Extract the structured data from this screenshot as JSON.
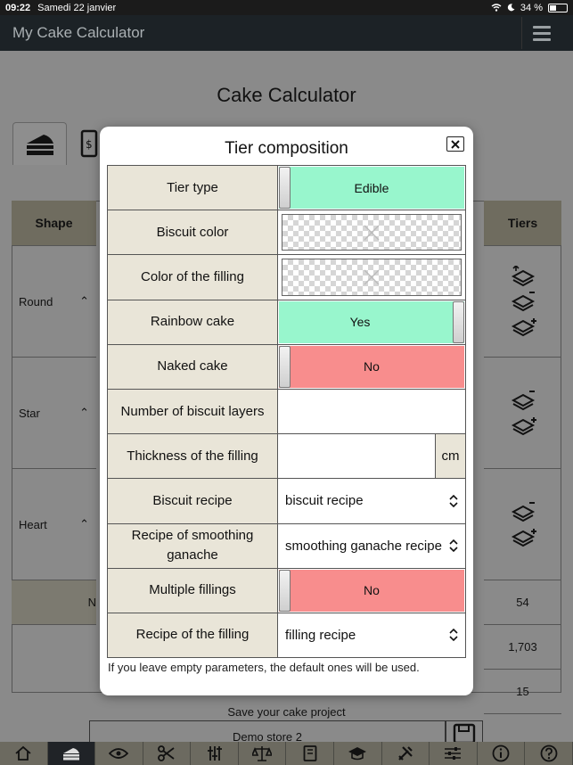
{
  "status": {
    "time": "09:22",
    "date": "Samedi 22 janvier",
    "battery": "34 %"
  },
  "app": {
    "title": "My Cake Calculator"
  },
  "page": {
    "title": "Cake Calculator",
    "shape_header": "Shape",
    "tiers_header": "Tiers",
    "shapes": [
      "Round",
      "Star",
      "Heart"
    ],
    "summary_values": [
      "54",
      "1,703",
      "15"
    ],
    "summary_label_partial": "N",
    "save_label": "Save your cake project",
    "store_value": "Demo store 2"
  },
  "modal": {
    "title": "Tier composition",
    "rows": {
      "tier_type": {
        "label": "Tier type",
        "value": "Edible"
      },
      "biscuit_color": {
        "label": "Biscuit color"
      },
      "filling_color": {
        "label": "Color of the filling"
      },
      "rainbow": {
        "label": "Rainbow cake",
        "value": "Yes"
      },
      "naked": {
        "label": "Naked cake",
        "value": "No"
      },
      "layers": {
        "label": "Number of biscuit layers",
        "value": ""
      },
      "thickness": {
        "label": "Thickness of the filling",
        "value": "",
        "unit": "cm"
      },
      "biscuit_recipe": {
        "label": "Biscuit recipe",
        "value": "biscuit recipe"
      },
      "ganache_recipe": {
        "label": "Recipe of smoothing ganache",
        "value": "smoothing ganache recipe"
      },
      "multiple": {
        "label": "Multiple fillings",
        "value": "No"
      },
      "filling_recipe": {
        "label": "Recipe of the filling",
        "value": "filling recipe"
      }
    },
    "footnote": "If you leave empty parameters, the default ones will be used."
  },
  "colors": {
    "toggle_on": "#98f6cd",
    "toggle_off": "#f88d8d",
    "label_bg": "#e9e5d8",
    "header_bg": "#1c2226"
  },
  "toolbar_icons": [
    "home-icon",
    "cake-icon",
    "eye-icon",
    "scissors-icon",
    "tools-icon",
    "scale-icon",
    "book-icon",
    "graduation-icon",
    "wrench-icon",
    "sliders-icon",
    "info-icon",
    "help-icon"
  ]
}
